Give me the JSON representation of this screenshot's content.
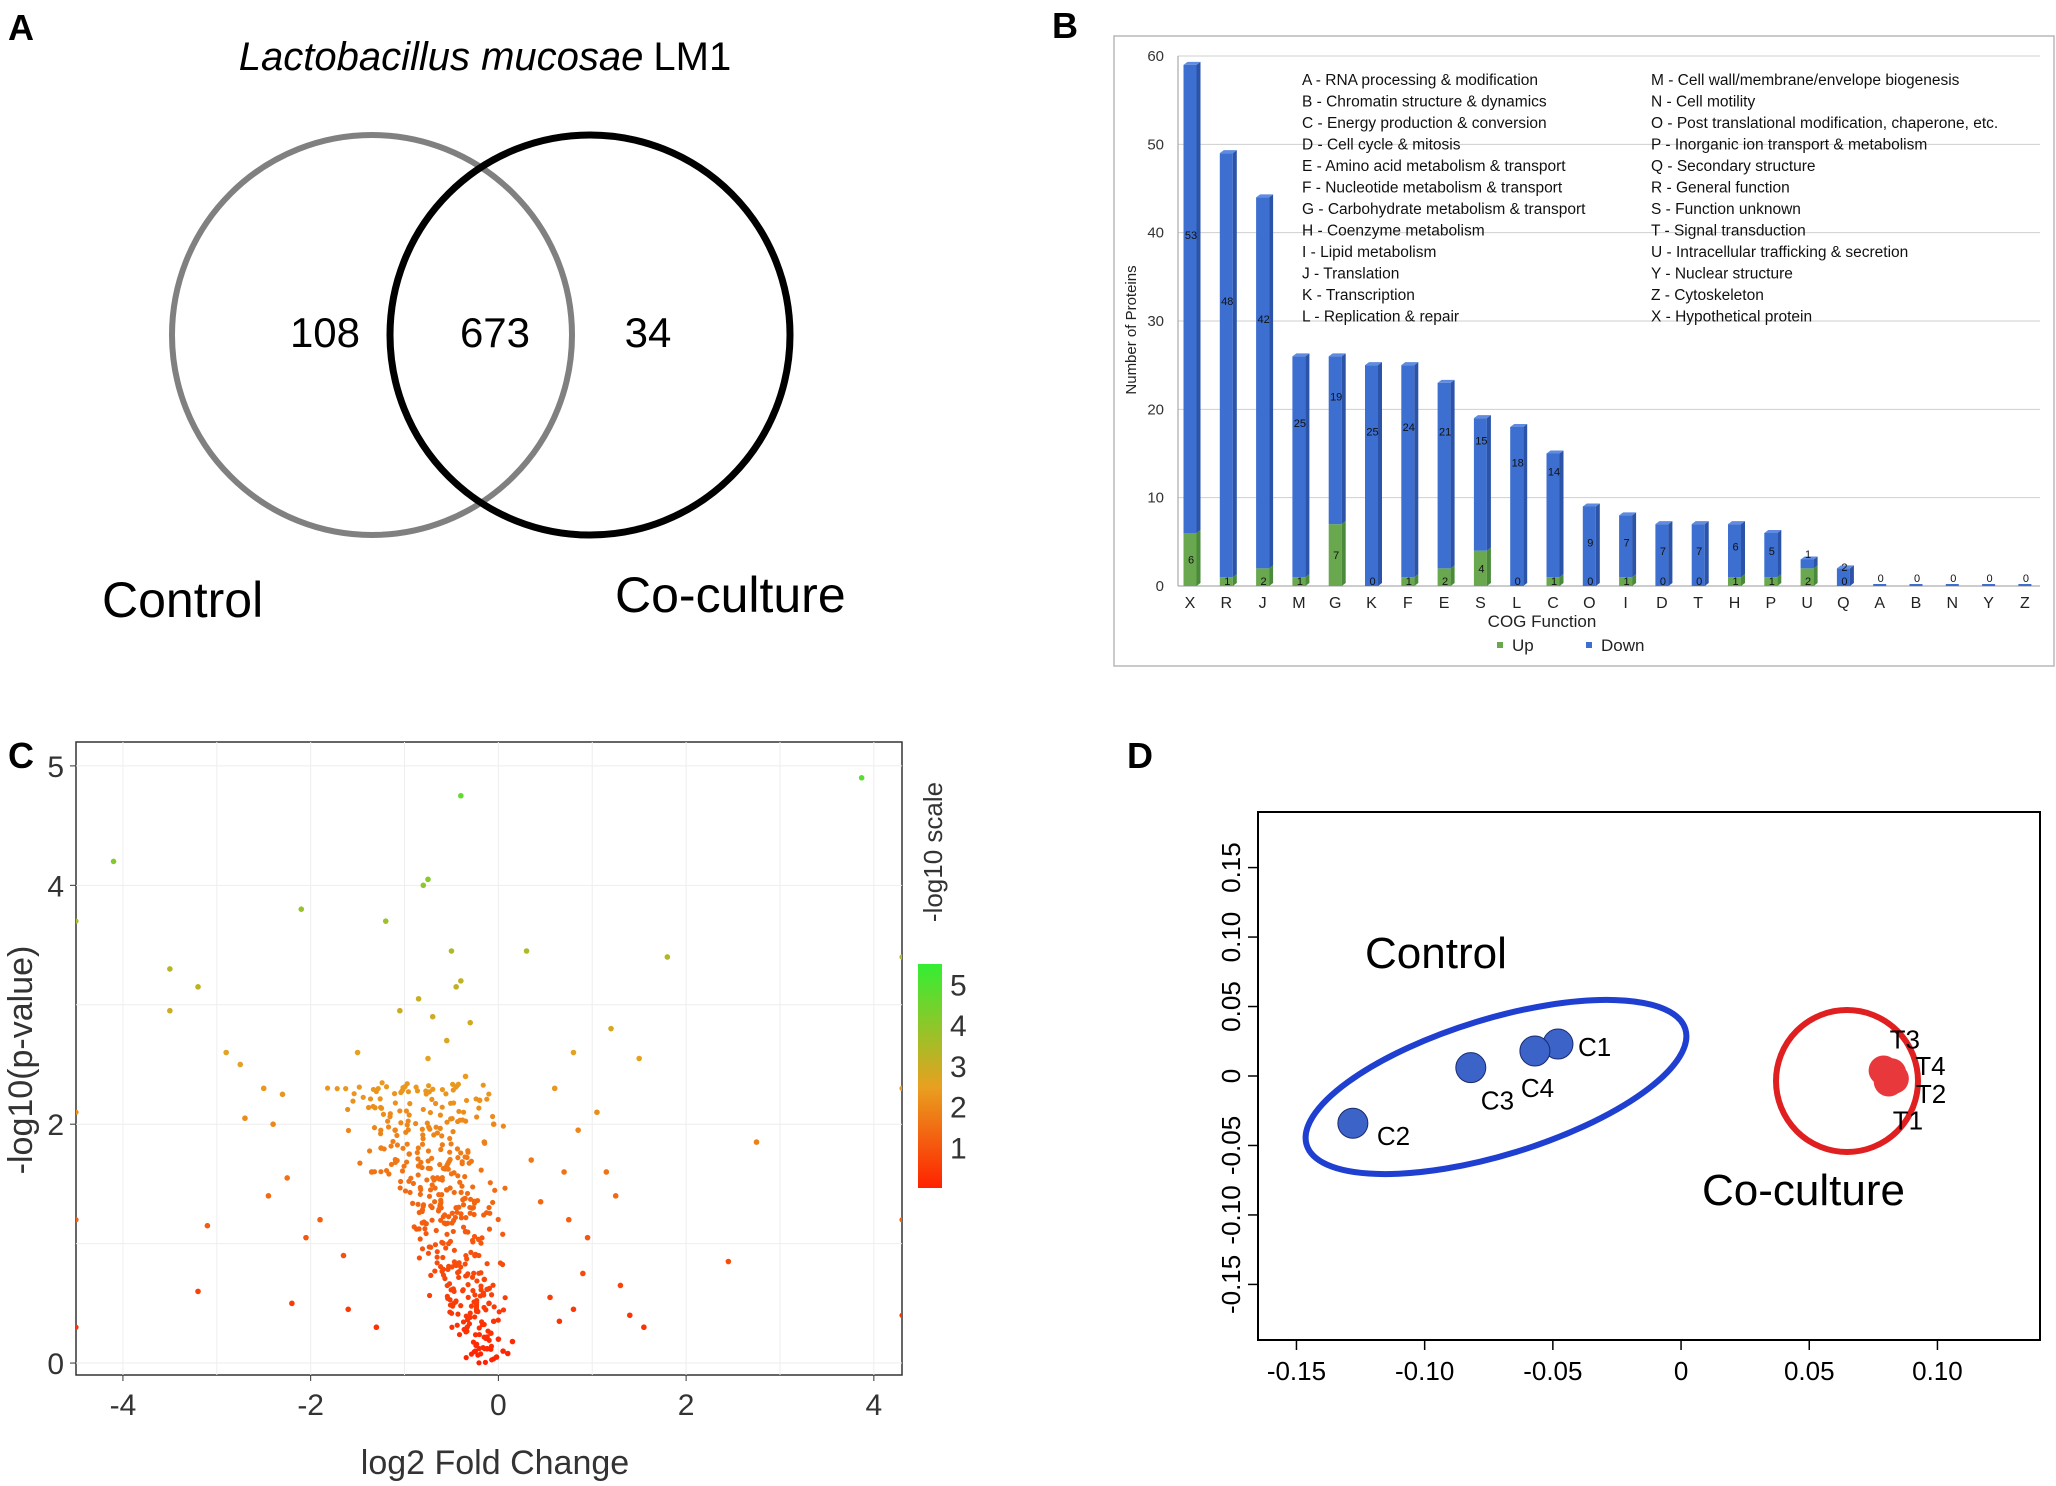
{
  "figure": {
    "panel_labels": [
      "A",
      "B",
      "C",
      "D"
    ]
  },
  "chart_data": [
    {
      "type": "venn",
      "panel": "A",
      "title_italic": "Lactobacillus mucosae",
      "title_rest": "LM1",
      "sets": [
        {
          "name": "Control",
          "only": 108,
          "color": "#808080"
        },
        {
          "name": "Co-culture",
          "only": 34,
          "color": "#000000"
        }
      ],
      "intersection": 673
    },
    {
      "type": "bar",
      "panel": "B",
      "stacked": true,
      "xlabel": "COG Function",
      "ylabel": "Number of Proteins",
      "ylim": [
        0,
        60
      ],
      "yticks": [
        0,
        10,
        20,
        30,
        40,
        50,
        60
      ],
      "categories": [
        "X",
        "R",
        "J",
        "M",
        "G",
        "K",
        "F",
        "E",
        "S",
        "L",
        "C",
        "O",
        "I",
        "D",
        "T",
        "H",
        "P",
        "U",
        "Q",
        "A",
        "B",
        "N",
        "Y",
        "Z"
      ],
      "series": [
        {
          "name": "Up",
          "color": "#6aa84f",
          "values": [
            6,
            1,
            2,
            1,
            7,
            0,
            1,
            2,
            4,
            0,
            1,
            0,
            1,
            0,
            0,
            1,
            1,
            2,
            0,
            0,
            0,
            0,
            0,
            0
          ]
        },
        {
          "name": "Down",
          "color": "#3c6fd0",
          "values": [
            53,
            48,
            42,
            25,
            19,
            25,
            24,
            21,
            15,
            18,
            14,
            9,
            7,
            7,
            7,
            6,
            5,
            1,
            2,
            0,
            0,
            0,
            0,
            0
          ]
        }
      ],
      "legend_position": "bottom",
      "key_left": [
        "A - RNA processing & modification",
        "B - Chromatin structure & dynamics",
        "C - Energy production & conversion",
        "D - Cell cycle & mitosis",
        "E - Amino acid metabolism & transport",
        "F - Nucleotide metabolism & transport",
        "G - Carbohydrate metabolism & transport",
        "H - Coenzyme metabolism",
        "I - Lipid metabolism",
        "J - Translation",
        "K - Transcription",
        "L - Replication & repair"
      ],
      "key_right": [
        "M - Cell wall/membrane/envelope biogenesis",
        "N - Cell motility",
        "O - Post translational modification, chaperone, etc.",
        "P - Inorganic ion transport & metabolism",
        "Q - Secondary structure",
        "R - General function",
        "S - Function unknown",
        "T - Signal transduction",
        "U - Intracellular trafficking & secretion",
        "Y - Nuclear structure",
        "Z - Cytoskeleton",
        "X - Hypothetical protein"
      ]
    },
    {
      "type": "scatter",
      "panel": "C",
      "xlabel": "log2 Fold Change",
      "ylabel": "-log10(p-value)",
      "xlim": [
        -4.5,
        4.3
      ],
      "ylim": [
        -0.1,
        5.2
      ],
      "xticks": [
        -4,
        -2,
        0,
        2,
        4
      ],
      "yticks": [
        0,
        2,
        4,
        5
      ],
      "colorbar": {
        "label": "-log10 scale",
        "ticks": [
          1,
          2,
          3,
          4,
          5
        ],
        "range": [
          0,
          5.5
        ],
        "colors": [
          "#ff2200",
          "#e8a020",
          "#33ee33"
        ]
      },
      "points": [
        [
          3.87,
          4.9
        ],
        [
          -0.4,
          4.75
        ],
        [
          -4.1,
          4.2
        ],
        [
          -0.8,
          4.0
        ],
        [
          -0.75,
          4.05
        ],
        [
          -2.1,
          3.8
        ],
        [
          -1.2,
          3.7
        ],
        [
          -0.5,
          3.45
        ],
        [
          0.3,
          3.45
        ],
        [
          1.8,
          3.4
        ],
        [
          -0.4,
          3.2
        ],
        [
          -0.45,
          3.15
        ],
        [
          -3.5,
          3.3
        ],
        [
          -3.2,
          3.15
        ],
        [
          -3.5,
          2.95
        ],
        [
          -0.85,
          3.05
        ],
        [
          -0.7,
          2.9
        ],
        [
          -1.05,
          2.95
        ],
        [
          -0.3,
          2.85
        ],
        [
          1.2,
          2.8
        ],
        [
          0.8,
          2.6
        ],
        [
          -2.9,
          2.6
        ],
        [
          -2.75,
          2.5
        ],
        [
          -1.5,
          2.6
        ],
        [
          1.5,
          2.55
        ],
        [
          -0.75,
          2.55
        ],
        [
          -2.5,
          2.3
        ],
        [
          -2.3,
          2.25
        ],
        [
          0.6,
          2.3
        ],
        [
          1.05,
          2.1
        ],
        [
          -2.7,
          2.05
        ],
        [
          -2.4,
          2.0
        ],
        [
          0.85,
          1.95
        ],
        [
          2.75,
          1.85
        ],
        [
          -3.1,
          1.15
        ],
        [
          2.45,
          0.85
        ],
        [
          -3.2,
          0.6
        ],
        [
          1.3,
          0.65
        ],
        [
          0.55,
          0.55
        ],
        [
          1.4,
          0.4
        ],
        [
          1.55,
          0.3
        ],
        [
          -2.2,
          0.5
        ],
        [
          -1.6,
          0.45
        ],
        [
          0.8,
          0.45
        ],
        [
          0.65,
          0.35
        ],
        [
          -1.3,
          0.3
        ],
        [
          0.9,
          0.75
        ],
        [
          1.25,
          1.4
        ],
        [
          0.75,
          1.2
        ],
        [
          0.95,
          1.05
        ],
        [
          -2.25,
          1.55
        ],
        [
          -2.45,
          1.4
        ],
        [
          -1.9,
          1.2
        ],
        [
          -2.05,
          1.05
        ],
        [
          -1.65,
          0.9
        ],
        [
          0.45,
          1.35
        ],
        [
          0.35,
          1.7
        ],
        [
          0.7,
          1.6
        ],
        [
          1.15,
          1.6
        ],
        [
          -0.05,
          2.0
        ],
        [
          -0.2,
          2.2
        ],
        [
          -0.35,
          2.4
        ],
        [
          -0.15,
          1.85
        ],
        [
          -0.55,
          2.7
        ],
        [
          -1.1,
          1.95
        ],
        [
          -1.25,
          1.8
        ],
        [
          -1.35,
          1.6
        ],
        [
          -0.95,
          1.75
        ],
        [
          -0.85,
          1.65
        ],
        [
          -0.65,
          1.55
        ],
        [
          -0.55,
          1.45
        ],
        [
          -0.45,
          1.3
        ],
        [
          -0.35,
          1.1
        ],
        [
          -0.25,
          0.9
        ],
        [
          -0.15,
          0.7
        ],
        [
          -0.1,
          0.5
        ],
        [
          -0.05,
          0.35
        ],
        [
          0.0,
          0.2
        ],
        [
          0.05,
          0.1
        ],
        [
          -0.02,
          0.05
        ],
        [
          0.1,
          0.08
        ],
        [
          0.15,
          0.18
        ],
        [
          -0.12,
          0.12
        ],
        [
          -0.08,
          0.25
        ]
      ],
      "cluster": {
        "count": 420,
        "seed": 7
      }
    },
    {
      "type": "scatter",
      "panel": "D",
      "xlim": [
        -0.165,
        0.14
      ],
      "ylim": [
        -0.19,
        0.19
      ],
      "xticks": [
        -0.15,
        -0.1,
        -0.05,
        0,
        0.05,
        0.1
      ],
      "yticks": [
        -0.15,
        -0.1,
        -0.05,
        0,
        0.05,
        0.1,
        0.15
      ],
      "xtick_labels": [
        "-0.15",
        "-0.10",
        "-0.05",
        "0",
        "0.05",
        "0.10"
      ],
      "ytick_labels": [
        "-0.15",
        "-0.10",
        "-0.05",
        "0",
        "0.05",
        "0.10",
        "0.15"
      ],
      "groups": [
        {
          "name": "Control",
          "color": "#1f3fd0",
          "point_color": "#3b63c8",
          "points": [
            {
              "label": "C1",
              "x": -0.048,
              "y": 0.023
            },
            {
              "label": "C4",
              "x": -0.057,
              "y": 0.018
            },
            {
              "label": "C3",
              "x": -0.082,
              "y": 0.006
            },
            {
              "label": "C2",
              "x": -0.128,
              "y": -0.034
            }
          ]
        },
        {
          "name": "Co-culture",
          "color": "#e02020",
          "point_color": "#e8383c",
          "points": [
            {
              "label": "T3",
              "x": 0.079,
              "y": 0.004
            },
            {
              "label": "T4",
              "x": 0.082,
              "y": 0.002
            },
            {
              "label": "T2",
              "x": 0.083,
              "y": -0.002
            },
            {
              "label": "T1",
              "x": 0.081,
              "y": -0.004
            }
          ]
        }
      ]
    }
  ]
}
